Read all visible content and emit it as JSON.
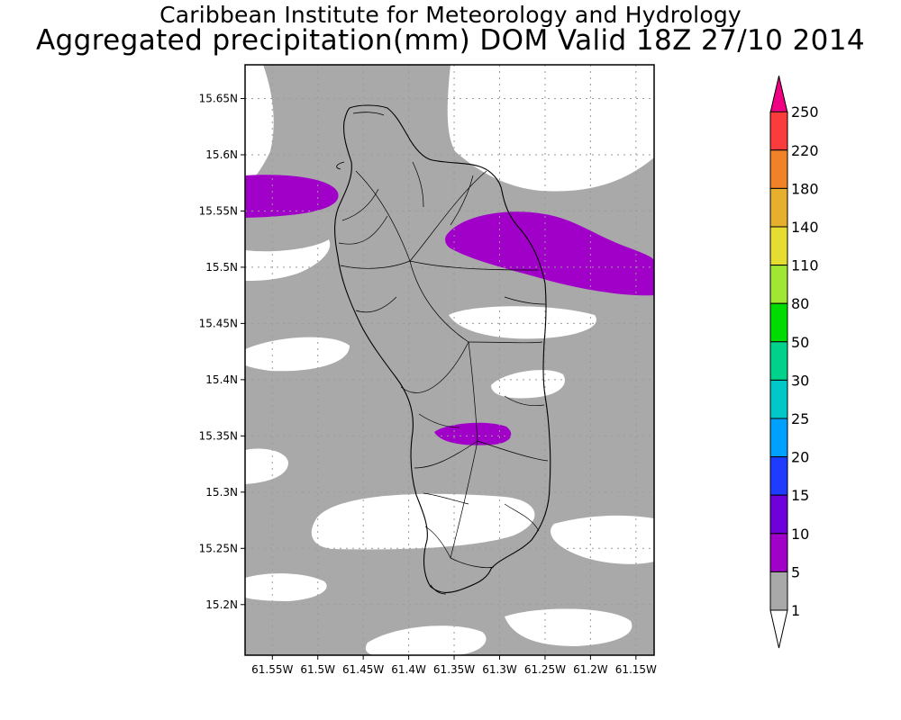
{
  "header": {
    "title_line_1": "Caribbean Institute for Meteorology and Hydrology",
    "title_line_2": "Aggregated precipitation(mm) DOM Valid 18Z 27/10 2014"
  },
  "map": {
    "extent": {
      "lon_min": -61.58,
      "lon_max": -61.13,
      "lat_min": 15.155,
      "lat_max": 15.68
    },
    "grid_lines": true,
    "x_ticks": [
      {
        "value": -61.55,
        "label": "61.55W"
      },
      {
        "value": -61.5,
        "label": "61.5W"
      },
      {
        "value": -61.45,
        "label": "61.45W"
      },
      {
        "value": -61.4,
        "label": "61.4W"
      },
      {
        "value": -61.35,
        "label": "61.35W"
      },
      {
        "value": -61.3,
        "label": "61.3W"
      },
      {
        "value": -61.25,
        "label": "61.25W"
      },
      {
        "value": -61.2,
        "label": "61.2W"
      },
      {
        "value": -61.15,
        "label": "61.15W"
      }
    ],
    "y_ticks": [
      {
        "value": 15.2,
        "label": "15.2N"
      },
      {
        "value": 15.25,
        "label": "15.25N"
      },
      {
        "value": 15.3,
        "label": "15.3N"
      },
      {
        "value": 15.35,
        "label": "15.35N"
      },
      {
        "value": 15.4,
        "label": "15.4N"
      },
      {
        "value": 15.45,
        "label": "15.45N"
      },
      {
        "value": 15.5,
        "label": "15.5N"
      },
      {
        "value": 15.55,
        "label": "15.55N"
      },
      {
        "value": 15.6,
        "label": "15.6N"
      },
      {
        "value": 15.65,
        "label": "15.65N"
      }
    ],
    "colors": {
      "below_1": "#ffffff",
      "range_1_5": "#a9a9a9",
      "range_5_10": "#a000c8",
      "coastline": "#000000",
      "grid": "#9a9a9a"
    }
  },
  "legend": {
    "bins": [
      {
        "label": "1",
        "color": "#ffffff"
      },
      {
        "label": "5",
        "color": "#a9a9a9"
      },
      {
        "label": "10",
        "color": "#a000c8"
      },
      {
        "label": "15",
        "color": "#6e00dc"
      },
      {
        "label": "20",
        "color": "#1e3cff"
      },
      {
        "label": "25",
        "color": "#00a0ff"
      },
      {
        "label": "30",
        "color": "#00c8c8"
      },
      {
        "label": "50",
        "color": "#00d28c"
      },
      {
        "label": "80",
        "color": "#00dc00"
      },
      {
        "label": "110",
        "color": "#a0e632"
      },
      {
        "label": "140",
        "color": "#e6dc32"
      },
      {
        "label": "180",
        "color": "#e6af2d"
      },
      {
        "label": "220",
        "color": "#f08228"
      },
      {
        "label": "250",
        "color": "#fa3c3c"
      }
    ],
    "top_arrow_color": "#f00082",
    "bottom_arrow_color": "#ffffff"
  }
}
